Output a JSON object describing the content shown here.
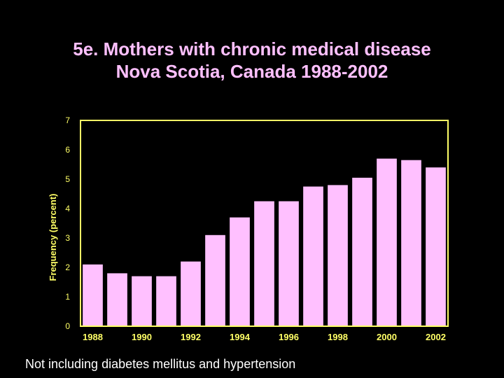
{
  "title": {
    "line1": "5e. Mothers with chronic medical disease",
    "line2": "Nova Scotia, Canada 1988-2002"
  },
  "footnote": "Not including diabetes mellitus and hypertension",
  "colors": {
    "background": "#000000",
    "title": "#ffc0ff",
    "bar": "#ffc0ff",
    "axis_text": "#ffff66",
    "axis_line": "#ffff66",
    "footnote": "#ffffff"
  },
  "chart_data": {
    "type": "bar",
    "title": "5e. Mothers with chronic medical disease Nova Scotia, Canada 1988-2002",
    "xlabel": "",
    "ylabel": "Frequency (percent)",
    "ylim": [
      0,
      7
    ],
    "yticks": [
      0,
      1,
      2,
      3,
      4,
      5,
      6,
      7
    ],
    "categories": [
      "1988",
      "1989",
      "1990",
      "1991",
      "1992",
      "1993",
      "1994",
      "1995",
      "1996",
      "1997",
      "1998",
      "1999",
      "2000",
      "2001",
      "2002"
    ],
    "xtick_labels": [
      "1988",
      "1990",
      "1992",
      "1994",
      "1996",
      "1998",
      "2000",
      "2002"
    ],
    "values": [
      2.1,
      1.8,
      1.7,
      1.7,
      2.2,
      3.1,
      3.7,
      4.25,
      4.25,
      4.75,
      4.8,
      5.05,
      5.7,
      5.65,
      5.4
    ],
    "grid": false,
    "legend": "none"
  }
}
